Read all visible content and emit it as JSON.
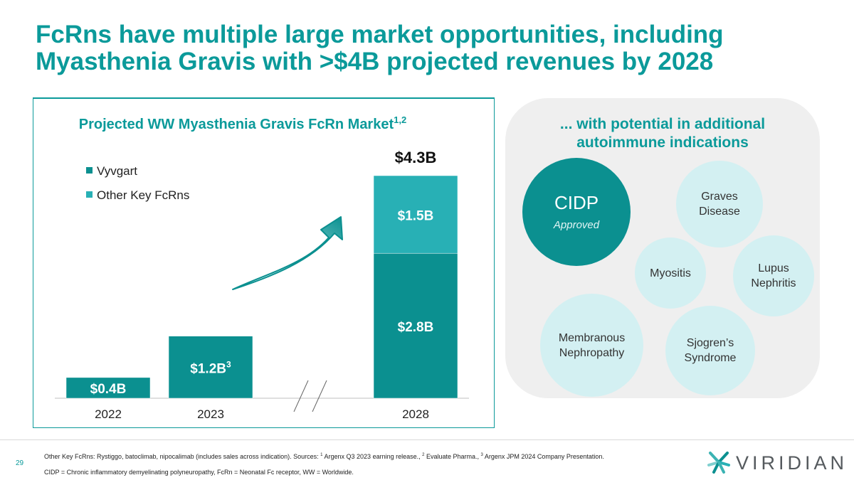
{
  "title": {
    "line1": "FcRns have multiple large market opportunities, including",
    "line2": "Myasthenia Gravis with >$4B projected revenues by 2028"
  },
  "chart_data": {
    "type": "bar",
    "title": "Projected WW Myasthenia Gravis FcRn Market",
    "title_sup": "1,2",
    "categories": [
      "2022",
      "2023",
      "2028"
    ],
    "series": [
      {
        "name": "Vyvgart",
        "values": [
          0.4,
          1.2,
          2.8
        ],
        "labels": [
          "$0.4B",
          "$1.2B",
          "$2.8B"
        ],
        "label_sups": [
          "",
          "3",
          ""
        ],
        "color": "#0b9090"
      },
      {
        "name": "Other Key FcRns",
        "values": [
          0,
          0,
          1.5
        ],
        "labels": [
          "",
          "",
          "$1.5B"
        ],
        "label_sups": [
          "",
          "",
          ""
        ],
        "color": "#28b0b5"
      }
    ],
    "totals": [
      "",
      "",
      "$4.3B"
    ],
    "ylim": [
      0,
      4.3
    ],
    "xlabel": "",
    "ylabel": "",
    "legend": "top-left",
    "grid": false,
    "axis_break": "between 2023 and 2028"
  },
  "panel": {
    "title_line1": "... with potential in additional",
    "title_line2": "autoimmune indications",
    "cidp": {
      "label": "CIDP",
      "status": "Approved"
    },
    "indications": [
      {
        "line1": "Graves",
        "line2": "Disease"
      },
      {
        "line1": "Myositis",
        "line2": ""
      },
      {
        "line1": "Lupus",
        "line2": "Nephritis"
      },
      {
        "line1": "Membranous",
        "line2": "Nephropathy"
      },
      {
        "line1": "Sjogren’s",
        "line2": "Syndrome"
      }
    ]
  },
  "footer": {
    "page": "29",
    "note1_pre": "Other Key FcRns: Rystiggo, batoclimab, nipocalimab (includes sales across indication). Sources: ",
    "sup1": "1",
    "note1_a": " Argenx Q3 2023 earning release., ",
    "sup2": "2",
    "note1_b": " Evaluate Pharma., ",
    "sup3": "3",
    "note1_c": " Argenx JPM 2024 Company Presentation.",
    "note2": "CIDP = Chronic inflammatory demyelinating polyneuropathy, FcRn = Neonatal Fc receptor, WW = Worldwide.",
    "logo": "VIRIDIAN"
  },
  "colors": {
    "brand": "#0b9a9a",
    "vyvgart": "#0b9090",
    "other": "#28b0b5",
    "bubble": "#d3f0f2",
    "panel_bg": "#efefef"
  }
}
